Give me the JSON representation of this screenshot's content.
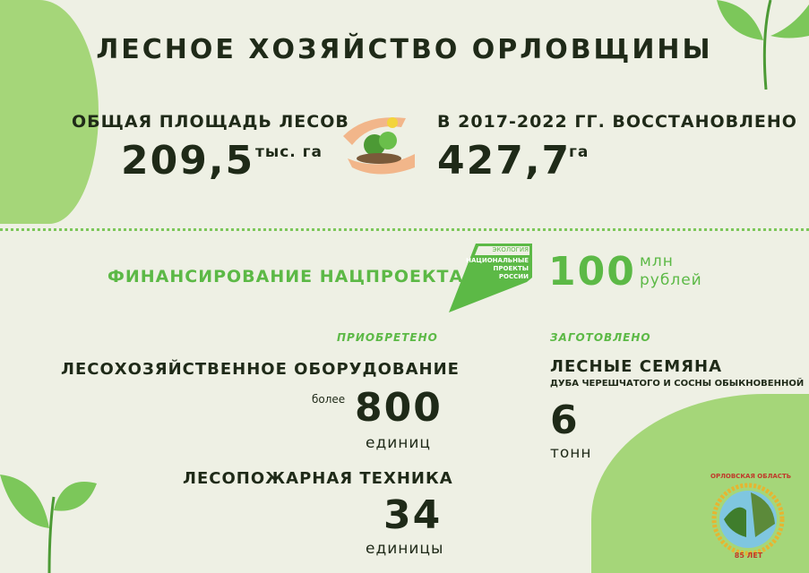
{
  "title": "ЛЕСНОЕ ХОЗЯЙСТВО ОРЛОВЩИНЫ",
  "forest_area": {
    "label": "ОБЩАЯ ПЛОЩАДЬ ЛЕСОВ",
    "value": "209,5",
    "unit": "тыс. га"
  },
  "restored": {
    "label": "В 2017-2022 ГГ. ВОССТАНОВЛЕНО",
    "value": "427,7",
    "unit": "га"
  },
  "funding": {
    "label": "ФИНАНСИРОВАНИЕ НАЦПРОЕКТА",
    "value": "100",
    "unit1": "млн",
    "unit2": "рублей",
    "logo": {
      "top": "ЭКОЛОГИЯ",
      "l1": "НАЦИОНАЛЬНЫЕ",
      "l2": "ПРОЕКТЫ",
      "l3": "РОССИИ"
    }
  },
  "acquired": {
    "caption": "ПРИОБРЕТЕНО",
    "equipment": {
      "label": "ЛЕСОХОЗЯЙСТВЕННОЕ ОБОРУДОВАНИЕ",
      "prefix": "более",
      "value": "800",
      "unit": "единиц"
    },
    "fire": {
      "label": "ЛЕСОПОЖАРНАЯ ТЕХНИКА",
      "value": "34",
      "unit": "единицы"
    }
  },
  "harvested": {
    "caption": "ЗАГОТОВЛЕНО",
    "label": "ЛЕСНЫЕ СЕМЯНА",
    "sub": "ДУБА ЧЕРЕШЧАТОГО И СОСНЫ ОБЫКНОВЕННОЙ",
    "value": "6",
    "unit": "тонн"
  },
  "emblem": {
    "top": "ОРЛОВСКАЯ ОБЛАСТЬ",
    "bottom": "85 ЛЕТ"
  },
  "colors": {
    "background": "#eef0e4",
    "accent": "#5cb946",
    "light": "#a5d679",
    "text": "#1f2a18"
  }
}
